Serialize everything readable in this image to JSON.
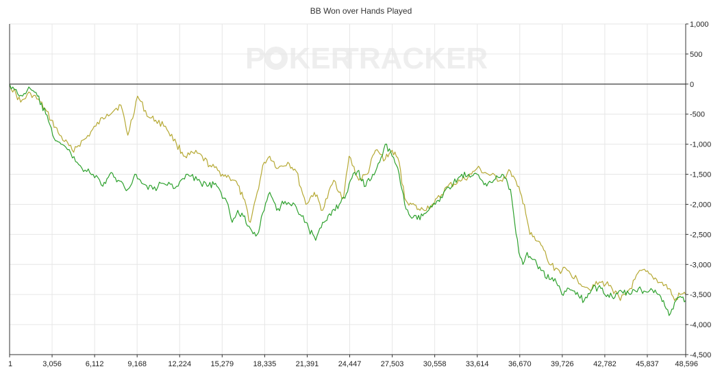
{
  "chart_data": {
    "type": "line",
    "title": "BB Won over Hands Played",
    "xlabel": "",
    "ylabel": "",
    "x_ticks": [
      "1",
      "3,056",
      "6,112",
      "9,168",
      "12,224",
      "15,279",
      "18,335",
      "21,391",
      "24,447",
      "27,503",
      "30,558",
      "33,614",
      "36,670",
      "39,726",
      "42,782",
      "45,837",
      "48,596"
    ],
    "y_ticks": [
      "1,000",
      "500",
      "0",
      "-500",
      "-1,000",
      "-1,500",
      "-2,000",
      "-2,500",
      "-3,000",
      "-3,500",
      "-4,000",
      "-4,500"
    ],
    "xlim": [
      1,
      48596
    ],
    "ylim": [
      -4500,
      1000
    ],
    "grid": true,
    "zero_line": true,
    "watermark": {
      "left": "POKER",
      "right": "TRACKER"
    },
    "series": [
      {
        "color": "#b5a832",
        "x": [
          1,
          800,
          1500,
          2200,
          3000,
          3600,
          4500,
          5500,
          6200,
          7000,
          8000,
          8500,
          9200,
          10000,
          10500,
          11200,
          12000,
          12600,
          13500,
          14400,
          15300,
          15800,
          16200,
          16800,
          17300,
          17800,
          18300,
          18700,
          19300,
          20000,
          20600,
          21300,
          21900,
          22500,
          23300,
          24000,
          24400,
          25100,
          25700,
          26300,
          27000,
          27500,
          28000,
          28400,
          28900,
          29500,
          30500,
          31500,
          32500,
          33200,
          33600,
          34400,
          35300,
          36000,
          36500,
          37000,
          37400,
          37800,
          38300,
          38800,
          39500,
          40100,
          40800,
          41600,
          42500,
          43200,
          43900,
          44600,
          45400,
          46200,
          46800,
          47400,
          47800,
          48200,
          48596
        ],
        "y": [
          0,
          -300,
          -150,
          -300,
          -600,
          -850,
          -1100,
          -900,
          -700,
          -500,
          -350,
          -850,
          -200,
          -550,
          -600,
          -700,
          -1000,
          -1200,
          -1150,
          -1350,
          -1500,
          -1550,
          -1600,
          -1900,
          -2300,
          -1800,
          -1300,
          -1200,
          -1400,
          -1300,
          -1450,
          -2000,
          -1800,
          -2100,
          -1600,
          -1900,
          -1200,
          -1600,
          -1500,
          -1100,
          -1250,
          -1100,
          -1300,
          -1900,
          -2000,
          -2100,
          -2000,
          -1700,
          -1600,
          -1500,
          -1400,
          -1500,
          -1600,
          -1450,
          -1700,
          -2000,
          -2500,
          -2600,
          -2700,
          -3000,
          -3100,
          -3100,
          -3250,
          -3400,
          -3300,
          -3350,
          -3600,
          -3400,
          -3100,
          -3200,
          -3300,
          -3400,
          -3600,
          -3500,
          -3500
        ]
      },
      {
        "color": "#2ca02c",
        "x": [
          1,
          700,
          1500,
          2000,
          2600,
          3100,
          3700,
          4400,
          5200,
          6000,
          6700,
          7200,
          7800,
          8500,
          9000,
          9500,
          10300,
          11000,
          12000,
          12800,
          13500,
          14200,
          14800,
          15300,
          15700,
          16000,
          16400,
          16800,
          17300,
          17800,
          18300,
          18700,
          19200,
          19800,
          20500,
          21000,
          21500,
          22000,
          22600,
          23200,
          23700,
          24100,
          24500,
          25000,
          25600,
          26100,
          26600,
          27000,
          27500,
          28000,
          28400,
          28800,
          29300,
          29900,
          30600,
          31200,
          31900,
          32500,
          33100,
          33600,
          34200,
          34800,
          35400,
          36000,
          36300,
          36600,
          36900,
          37200,
          37500,
          37900,
          38300,
          38800,
          39300,
          39700,
          40200,
          40700,
          41300,
          41900,
          42500,
          43000,
          43500,
          44000,
          44600,
          45200,
          45700,
          46100,
          46600,
          47000,
          47400,
          47900,
          48300,
          48596
        ],
        "y": [
          0,
          -200,
          -80,
          -200,
          -500,
          -850,
          -1000,
          -1150,
          -1400,
          -1500,
          -1700,
          -1500,
          -1600,
          -1750,
          -1500,
          -1650,
          -1750,
          -1650,
          -1700,
          -1500,
          -1600,
          -1700,
          -1650,
          -1900,
          -2000,
          -2300,
          -2100,
          -2200,
          -2400,
          -2500,
          -2100,
          -1800,
          -2100,
          -1950,
          -2000,
          -2200,
          -2400,
          -2600,
          -2300,
          -2100,
          -2000,
          -1900,
          -1600,
          -1450,
          -1700,
          -1500,
          -1300,
          -1000,
          -1200,
          -1500,
          -2000,
          -2200,
          -2250,
          -2150,
          -2000,
          -1800,
          -1650,
          -1500,
          -1550,
          -1500,
          -1650,
          -1600,
          -1500,
          -1750,
          -2300,
          -2800,
          -3000,
          -2800,
          -2900,
          -3000,
          -3100,
          -3250,
          -3300,
          -3500,
          -3400,
          -3500,
          -3600,
          -3400,
          -3400,
          -3500,
          -3550,
          -3450,
          -3500,
          -3400,
          -3450,
          -3400,
          -3500,
          -3600,
          -3850,
          -3600,
          -3550,
          -3600
        ]
      }
    ]
  }
}
